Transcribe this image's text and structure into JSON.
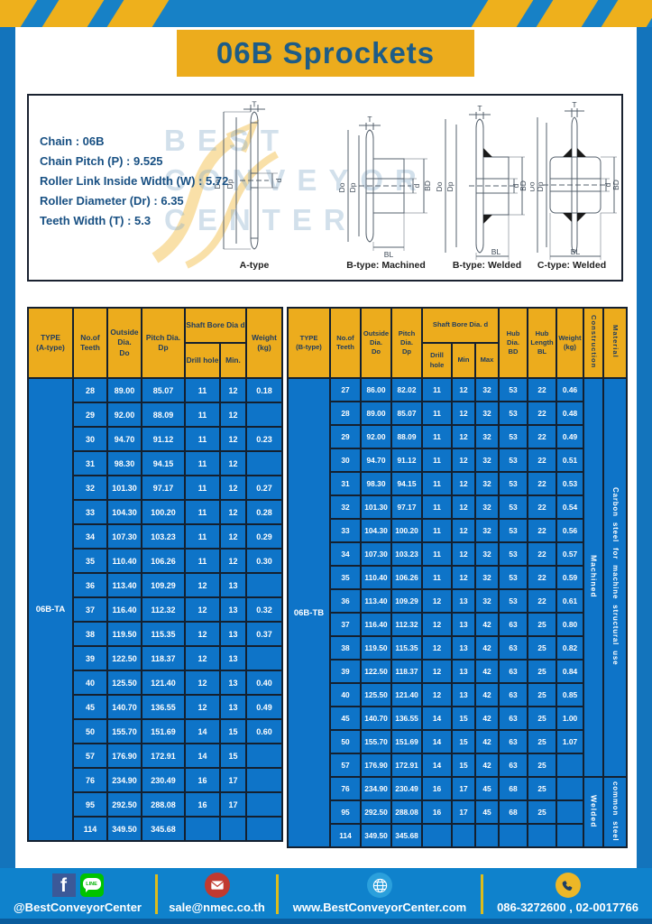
{
  "page_title": "06B Sprockets",
  "specs": {
    "lines": [
      "Chain  : 06B",
      "Chain Pitch (P)  :  9.525",
      "Roller Link Inside Width (W)  :  5.72",
      "Roller Diameter (Dr)  : 6.35",
      "Teeth Width (T)  :  5.3"
    ]
  },
  "watermark": {
    "line1": "BEST",
    "line2": "CONVEYOR",
    "line3": "CENTER"
  },
  "drawings": {
    "labels": {
      "t": "T",
      "outside": "Do",
      "pitch": "Dp",
      "bore": "d",
      "hub_dia": "BD",
      "hub_len": "BL"
    },
    "captions": {
      "a": "A-type",
      "b_machined": "B-type: Machined",
      "b_welded": "B-type: Welded",
      "c_welded": "C-type: Welded"
    }
  },
  "table_a": {
    "header": {
      "type": "TYPE\n(A-type)",
      "teeth": "No.of\nTeeth",
      "outside": "Outside\nDia.\nDo",
      "pitch": "Pitch Dia.\nDp",
      "shaft_bore": "Shaft Bore Dia d",
      "drill": "Drill hole",
      "min": "Min.",
      "weight": "Weight\n(kg)"
    },
    "type_value": "06B-TA",
    "rows": [
      [
        "28",
        "89.00",
        "85.07",
        "11",
        "12",
        "0.18"
      ],
      [
        "29",
        "92.00",
        "88.09",
        "11",
        "12",
        ""
      ],
      [
        "30",
        "94.70",
        "91.12",
        "11",
        "12",
        "0.23"
      ],
      [
        "31",
        "98.30",
        "94.15",
        "11",
        "12",
        ""
      ],
      [
        "32",
        "101.30",
        "97.17",
        "11",
        "12",
        "0.27"
      ],
      [
        "33",
        "104.30",
        "100.20",
        "11",
        "12",
        "0.28"
      ],
      [
        "34",
        "107.30",
        "103.23",
        "11",
        "12",
        "0.29"
      ],
      [
        "35",
        "110.40",
        "106.26",
        "11",
        "12",
        "0.30"
      ],
      [
        "36",
        "113.40",
        "109.29",
        "12",
        "13",
        ""
      ],
      [
        "37",
        "116.40",
        "112.32",
        "12",
        "13",
        "0.32"
      ],
      [
        "38",
        "119.50",
        "115.35",
        "12",
        "13",
        "0.37"
      ],
      [
        "39",
        "122.50",
        "118.37",
        "12",
        "13",
        ""
      ],
      [
        "40",
        "125.50",
        "121.40",
        "12",
        "13",
        "0.40"
      ],
      [
        "45",
        "140.70",
        "136.55",
        "12",
        "13",
        "0.49"
      ],
      [
        "50",
        "155.70",
        "151.69",
        "14",
        "15",
        "0.60"
      ],
      [
        "57",
        "176.90",
        "172.91",
        "14",
        "15",
        ""
      ],
      [
        "76",
        "234.90",
        "230.49",
        "16",
        "17",
        ""
      ],
      [
        "95",
        "292.50",
        "288.08",
        "16",
        "17",
        ""
      ],
      [
        "114",
        "349.50",
        "345.68",
        "",
        "",
        ""
      ]
    ]
  },
  "table_b": {
    "header": {
      "type": "TYPE\n(B-type)",
      "teeth": "No.of\nTeeth",
      "outside": "Outside\nDia.\nDo",
      "pitch": "Pitch\nDia.\nDp",
      "shaft_bore": "Shaft Bore Dia. d",
      "drill": "Drill hole",
      "min": "Min",
      "max": "Max",
      "hub_dia": "Hub\nDia.\nBD",
      "hub_len": "Hub\nLength\nBL",
      "weight": "Weight\n(kg)",
      "construction": "Construction",
      "material": "Material"
    },
    "type_value": "06B-TB",
    "sections": [
      {
        "construction": "Machined",
        "material": "Carbon steel for machine structural use",
        "span": 17
      },
      {
        "construction": "Welded",
        "material": "common steel",
        "span": 3
      }
    ],
    "rows": [
      [
        "27",
        "86.00",
        "82.02",
        "11",
        "12",
        "32",
        "53",
        "22",
        "0.46"
      ],
      [
        "28",
        "89.00",
        "85.07",
        "11",
        "12",
        "32",
        "53",
        "22",
        "0.48"
      ],
      [
        "29",
        "92.00",
        "88.09",
        "11",
        "12",
        "32",
        "53",
        "22",
        "0.49"
      ],
      [
        "30",
        "94.70",
        "91.12",
        "11",
        "12",
        "32",
        "53",
        "22",
        "0.51"
      ],
      [
        "31",
        "98.30",
        "94.15",
        "11",
        "12",
        "32",
        "53",
        "22",
        "0.53"
      ],
      [
        "32",
        "101.30",
        "97.17",
        "11",
        "12",
        "32",
        "53",
        "22",
        "0.54"
      ],
      [
        "33",
        "104.30",
        "100.20",
        "11",
        "12",
        "32",
        "53",
        "22",
        "0.56"
      ],
      [
        "34",
        "107.30",
        "103.23",
        "11",
        "12",
        "32",
        "53",
        "22",
        "0.57"
      ],
      [
        "35",
        "110.40",
        "106.26",
        "11",
        "12",
        "32",
        "53",
        "22",
        "0.59"
      ],
      [
        "36",
        "113.40",
        "109.29",
        "12",
        "13",
        "32",
        "53",
        "22",
        "0.61"
      ],
      [
        "37",
        "116.40",
        "112.32",
        "12",
        "13",
        "42",
        "63",
        "25",
        "0.80"
      ],
      [
        "38",
        "119.50",
        "115.35",
        "12",
        "13",
        "42",
        "63",
        "25",
        "0.82"
      ],
      [
        "39",
        "122.50",
        "118.37",
        "12",
        "13",
        "42",
        "63",
        "25",
        "0.84"
      ],
      [
        "40",
        "125.50",
        "121.40",
        "12",
        "13",
        "42",
        "63",
        "25",
        "0.85"
      ],
      [
        "45",
        "140.70",
        "136.55",
        "14",
        "15",
        "42",
        "63",
        "25",
        "1.00"
      ],
      [
        "50",
        "155.70",
        "151.69",
        "14",
        "15",
        "42",
        "63",
        "25",
        "1.07"
      ],
      [
        "57",
        "176.90",
        "172.91",
        "14",
        "15",
        "42",
        "63",
        "25",
        ""
      ],
      [
        "76",
        "234.90",
        "230.49",
        "16",
        "17",
        "45",
        "68",
        "25",
        ""
      ],
      [
        "95",
        "292.50",
        "288.08",
        "16",
        "17",
        "45",
        "68",
        "25",
        ""
      ],
      [
        "114",
        "349.50",
        "345.68",
        "",
        "",
        "",
        "",
        "",
        ""
      ]
    ]
  },
  "footer": {
    "social": "@BestConveyorCenter",
    "email": "sale@nmec.co.th",
    "website": "www.BestConveyorCenter.com",
    "phone": "086-3272600 , 02-0017766"
  },
  "colors": {
    "frame_blue": "#1374bc",
    "cell_blue": "#0e74c8",
    "accent_yellow": "#ecac1d",
    "header_text": "#203c5e",
    "footer_divider": "#ddbc1c"
  }
}
